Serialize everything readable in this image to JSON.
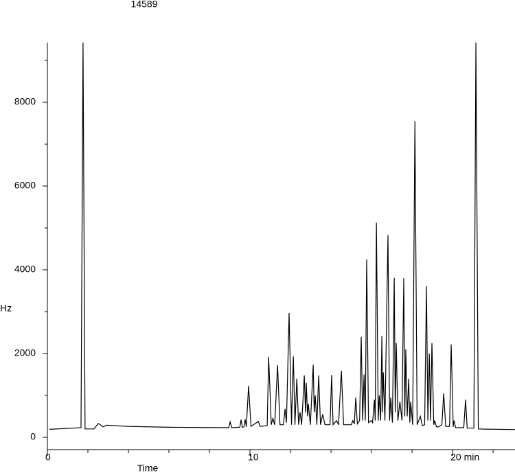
{
  "chart_data": {
    "type": "line",
    "title": "14589",
    "y_label": "Hz",
    "x_label": "Time",
    "xlim": [
      0,
      23.08
    ],
    "ylim": [
      0,
      9426
    ],
    "xticks": [
      0,
      10,
      {
        "value": 20,
        "label": "20 min"
      }
    ],
    "xminor_ticks": [
      2,
      4,
      6,
      8,
      12,
      14,
      16,
      18,
      22
    ],
    "yticks": [
      0,
      2000,
      4000,
      6000,
      8000
    ],
    "yminor_ticks": [
      1000,
      3000,
      5000,
      7000,
      9000
    ],
    "series": [
      {
        "color": "#000000",
        "x": [
          0.1,
          1.66,
          1.76,
          1.86,
          2.3,
          2.51,
          2.61,
          2.75,
          2.92,
          4.0,
          6.0,
          8.85,
          8.95,
          9.02,
          9.1,
          9.5,
          9.56,
          9.62,
          9.7,
          9.76,
          9.82,
          9.93,
          10.05,
          10.41,
          10.5,
          10.85,
          10.92,
          10.98,
          11.05,
          11.13,
          11.22,
          11.36,
          11.48,
          11.65,
          11.73,
          11.8,
          11.93,
          12.05,
          12.14,
          12.22,
          12.31,
          12.4,
          12.47,
          12.55,
          12.68,
          12.74,
          12.78,
          12.84,
          12.88,
          12.98,
          13.12,
          13.17,
          13.22,
          13.3,
          13.39,
          13.48,
          13.59,
          13.7,
          13.95,
          14.03,
          14.1,
          14.27,
          14.37,
          14.51,
          14.62,
          15.0,
          15.08,
          15.15,
          15.22,
          15.3,
          15.41,
          15.49,
          15.56,
          15.63,
          15.69,
          15.76,
          15.85,
          15.98,
          16.05,
          16.14,
          16.18,
          16.24,
          16.33,
          16.38,
          16.45,
          16.51,
          16.55,
          16.58,
          16.66,
          16.81,
          16.89,
          16.95,
          17.03,
          17.12,
          17.17,
          17.22,
          17.3,
          17.4,
          17.5,
          17.59,
          17.64,
          17.69,
          17.76,
          17.83,
          17.89,
          17.93,
          18.03,
          18.14,
          18.25,
          18.41,
          18.5,
          18.62,
          18.71,
          18.78,
          18.85,
          18.91,
          18.98,
          19.07,
          19.12,
          19.2,
          19.3,
          19.47,
          19.56,
          19.66,
          19.85,
          19.93,
          20.03,
          20.07,
          20.15,
          20.55,
          20.64,
          20.72,
          21.05,
          21.15,
          21.27,
          21.6,
          23.08
        ],
        "values": [
          190,
          230,
          9426,
          200,
          200,
          330,
          300,
          250,
          290,
          260,
          240,
          230,
          230,
          370,
          230,
          240,
          420,
          240,
          250,
          430,
          250,
          1230,
          260,
          380,
          260,
          280,
          1920,
          1200,
          300,
          450,
          300,
          1720,
          300,
          300,
          680,
          350,
          2970,
          300,
          1930,
          300,
          1400,
          300,
          600,
          300,
          1480,
          600,
          1300,
          500,
          800,
          300,
          1730,
          600,
          1000,
          300,
          1480,
          300,
          550,
          300,
          300,
          1490,
          300,
          400,
          300,
          1590,
          300,
          300,
          400,
          320,
          950,
          320,
          400,
          2400,
          400,
          1500,
          400,
          4250,
          350,
          400,
          350,
          900,
          400,
          5120,
          400,
          1000,
          400,
          2420,
          600,
          1550,
          400,
          4830,
          400,
          950,
          350,
          3810,
          600,
          2250,
          400,
          850,
          400,
          3800,
          500,
          2100,
          500,
          1400,
          350,
          850,
          300,
          7550,
          300,
          500,
          280,
          300,
          3610,
          400,
          2000,
          400,
          2250,
          300,
          400,
          250,
          250,
          300,
          1050,
          260,
          260,
          2220,
          250,
          400,
          230,
          230,
          900,
          220,
          220,
          9426,
          200,
          195,
          185
        ]
      }
    ]
  }
}
